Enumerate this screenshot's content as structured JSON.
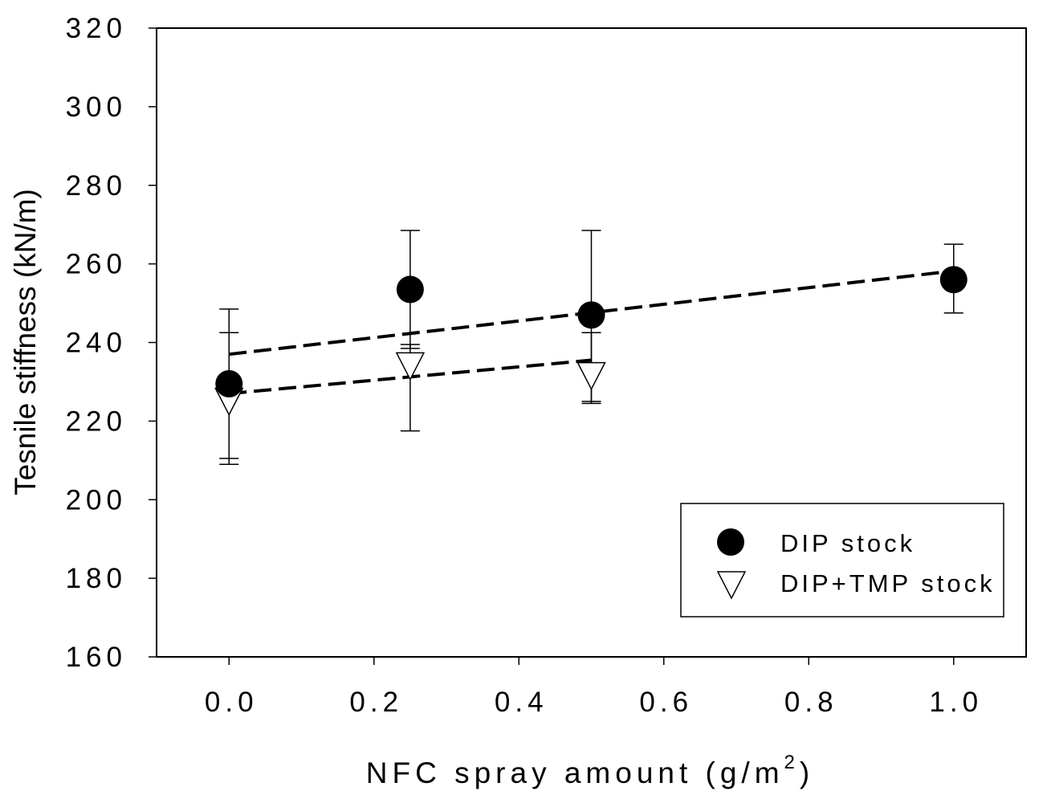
{
  "chart_data": {
    "type": "scatter",
    "xlabel": "NFC spray amount (g/m",
    "xlabel_sup": "2",
    "xlabel_end": ")",
    "ylabel": "Tesnile stiffness (kN/m)",
    "xlim": [
      -0.1,
      1.1
    ],
    "ylim": [
      160,
      320
    ],
    "xticks": [
      0.0,
      0.2,
      0.4,
      0.6,
      0.8,
      1.0
    ],
    "xtick_labels": [
      "0.0",
      "0.2",
      "0.4",
      "0.6",
      "0.8",
      "1.0"
    ],
    "yticks": [
      160,
      180,
      200,
      220,
      240,
      260,
      280,
      300,
      320
    ],
    "ytick_labels": [
      "160",
      "180",
      "200",
      "220",
      "240",
      "260",
      "280",
      "300",
      "320"
    ],
    "grid": false,
    "legend_position": "bottom-right",
    "series": [
      {
        "name": "DIP stock",
        "marker": "filled-circle",
        "color": "#000000",
        "points": [
          {
            "x": 0.0,
            "y": 229.5,
            "err_low": 210.5,
            "err_high": 248.5
          },
          {
            "x": 0.25,
            "y": 253.5,
            "err_low": 238.5,
            "err_high": 268.5
          },
          {
            "x": 0.5,
            "y": 247,
            "err_low": 225,
            "err_high": 268.5
          },
          {
            "x": 1.0,
            "y": 256,
            "err_low": 247.5,
            "err_high": 265
          }
        ],
        "trend": {
          "x": [
            0.0,
            1.0
          ],
          "y": [
            237,
            258.2
          ]
        }
      },
      {
        "name": "DIP+TMP stock",
        "marker": "open-triangle-down",
        "color": "#000000",
        "points": [
          {
            "x": 0.0,
            "y": 225.5,
            "err_low": 209,
            "err_high": 242.5
          },
          {
            "x": 0.25,
            "y": 234.5,
            "err_low": 217.5,
            "err_high": 239.5
          },
          {
            "x": 0.5,
            "y": 232,
            "err_low": 224.5,
            "err_high": 242.5
          }
        ],
        "trend": {
          "x": [
            0.0,
            0.5
          ],
          "y": [
            227,
            235.5
          ]
        }
      }
    ]
  }
}
